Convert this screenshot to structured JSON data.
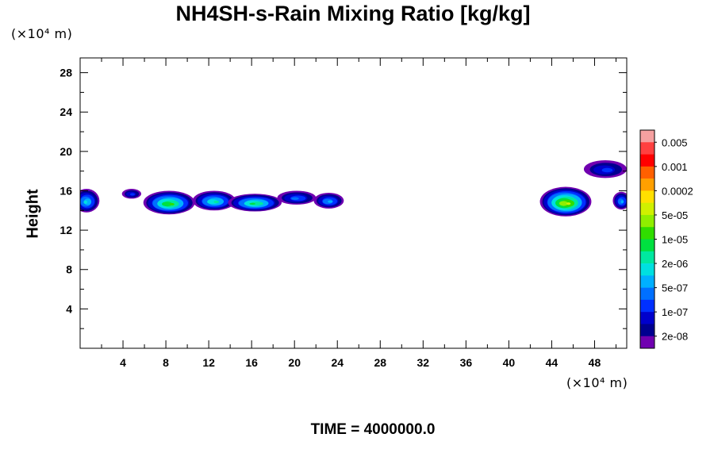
{
  "chart_data": {
    "type": "heatmap",
    "title": "NH4SH-s-Rain Mixing Ratio [kg/kg]",
    "ylabel": "Height",
    "x_unit_label": "(×10⁴ m)",
    "y_unit_label": "(×10⁴ m)",
    "footer": "TIME = 4000000.0",
    "xlim": [
      0,
      51
    ],
    "ylim": [
      0,
      29.5
    ],
    "x_ticks": [
      4,
      8,
      12,
      16,
      20,
      24,
      28,
      32,
      36,
      40,
      44,
      48
    ],
    "x_tick_labels": [
      "4",
      "8",
      "12",
      "16",
      "20",
      "24",
      "28",
      "32",
      "36",
      "40",
      "44",
      "48"
    ],
    "y_ticks": [
      4,
      8,
      12,
      16,
      20,
      24,
      28
    ],
    "y_tick_labels": [
      "4",
      "8",
      "12",
      "16",
      "20",
      "24",
      "28"
    ],
    "colorbar_labels": [
      "0.005",
      "0.001",
      "0.0002",
      "5e-05",
      "1e-05",
      "2e-06",
      "5e-07",
      "1e-07",
      "2e-08"
    ],
    "colorbar_colors": [
      "#f5a0a0",
      "#ff4040",
      "#ff0000",
      "#ff6000",
      "#ffa000",
      "#ffe000",
      "#d0f000",
      "#90ee00",
      "#30dd00",
      "#00e040",
      "#00e8a0",
      "#00e0e0",
      "#00b0ff",
      "#0070ff",
      "#0030ff",
      "#0000cc",
      "#000090",
      "#7000b0"
    ],
    "cells": [
      {
        "x": 0.6,
        "y": 15.0,
        "rx": 1.2,
        "ry": 1.2,
        "level": 11
      },
      {
        "x": 4.8,
        "y": 15.7,
        "rx": 0.9,
        "ry": 0.5,
        "level": 14
      },
      {
        "x": 8.3,
        "y": 14.8,
        "rx": 2.4,
        "ry": 1.2,
        "level": 8
      },
      {
        "x": 12.5,
        "y": 15.0,
        "rx": 2.0,
        "ry": 1.0,
        "level": 10
      },
      {
        "x": 16.3,
        "y": 14.8,
        "rx": 2.5,
        "ry": 0.9,
        "level": 9
      },
      {
        "x": 20.2,
        "y": 15.3,
        "rx": 1.8,
        "ry": 0.7,
        "level": 13
      },
      {
        "x": 23.2,
        "y": 15.0,
        "rx": 1.4,
        "ry": 0.8,
        "level": 12
      },
      {
        "x": 45.3,
        "y": 14.9,
        "rx": 2.4,
        "ry": 1.5,
        "level": 6
      },
      {
        "x": 49.0,
        "y": 18.2,
        "rx": 2.0,
        "ry": 0.9,
        "level": 14
      },
      {
        "x": 50.5,
        "y": 15.0,
        "rx": 0.8,
        "ry": 0.9,
        "level": 12
      }
    ]
  }
}
